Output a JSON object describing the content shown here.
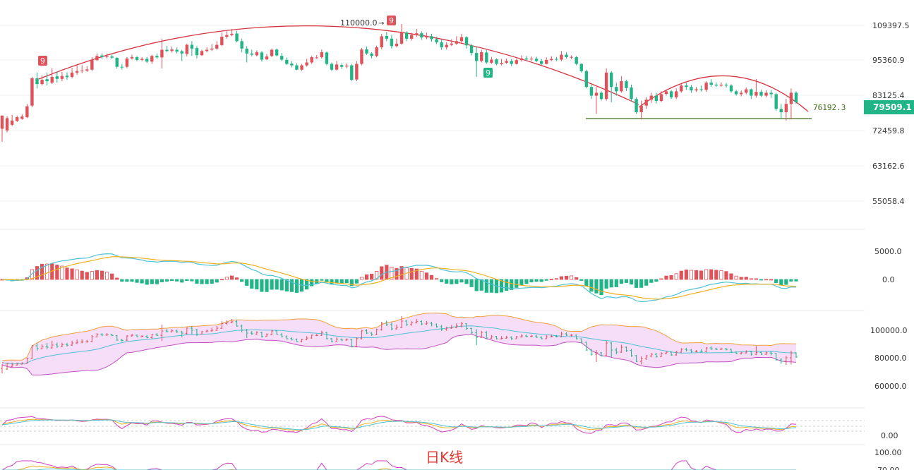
{
  "chart_data": {
    "type": "candlestick",
    "colors": {
      "up": "#e0525a",
      "down": "#20b486",
      "price_badge": "#20b486",
      "arc": "#d6333f",
      "support": "#3f6d18",
      "boll_band": "#f4d7f6",
      "macd_dif": "#4fc1d6",
      "macd_dea": "#f0b020"
    },
    "price_axis_ticks": [
      109397.5,
      95360.9,
      83125.4,
      72459.8,
      63162.6,
      55058.4
    ],
    "price_range": [
      50000,
      118000
    ],
    "annotations": {
      "high_label": "110000.0",
      "support_label": "76192.3",
      "current_price": "79509.1",
      "td_marks": [
        "9",
        "9",
        "9"
      ]
    },
    "candles": [
      [
        73000,
        77000,
        76000,
        69500
      ],
      [
        72500,
        76200,
        76800,
        72000
      ],
      [
        74200,
        75500,
        77200,
        73800
      ],
      [
        75400,
        76500,
        77000,
        75000
      ],
      [
        76000,
        76700,
        77400,
        75700
      ],
      [
        76500,
        79800,
        80500,
        76200
      ],
      [
        80000,
        89000,
        89500,
        79500
      ],
      [
        89000,
        87000,
        91000,
        85500
      ],
      [
        87000,
        88500,
        90000,
        86500
      ],
      [
        88700,
        88000,
        91000,
        86500
      ],
      [
        87500,
        89500,
        92500,
        87000
      ],
      [
        89700,
        88800,
        91300,
        87500
      ],
      [
        88800,
        89800,
        91200,
        88000
      ],
      [
        89900,
        89400,
        91100,
        88500
      ],
      [
        89500,
        91000,
        92600,
        89000
      ],
      [
        91000,
        91500,
        93500,
        90200
      ],
      [
        91600,
        91700,
        93500,
        90800
      ],
      [
        91700,
        92100,
        93200,
        91200
      ],
      [
        92000,
        95500,
        96500,
        91500
      ],
      [
        95300,
        97000,
        98000,
        95000
      ],
      [
        97200,
        96600,
        98000,
        95800
      ],
      [
        96600,
        96800,
        98000,
        96000
      ],
      [
        96800,
        96300,
        97500,
        95800
      ],
      [
        96200,
        93000,
        96500,
        92400
      ],
      [
        93000,
        92800,
        94000,
        92000
      ],
      [
        93000,
        96000,
        96500,
        92500
      ],
      [
        96000,
        96500,
        97500,
        95500
      ],
      [
        96500,
        95400,
        97000,
        95000
      ],
      [
        95400,
        95800,
        96500,
        95000
      ],
      [
        95800,
        94800,
        96600,
        94300
      ],
      [
        94800,
        97000,
        97500,
        94000
      ],
      [
        97000,
        96400,
        98000,
        95800
      ],
      [
        96400,
        99500,
        104000,
        92400
      ],
      [
        99500,
        99000,
        101000,
        98500
      ],
      [
        99000,
        99600,
        100800,
        98400
      ],
      [
        99500,
        98800,
        100500,
        98000
      ],
      [
        98900,
        98000,
        99500,
        95000
      ],
      [
        97800,
        101500,
        102000,
        96800
      ],
      [
        101500,
        100000,
        103000,
        97000
      ],
      [
        100200,
        97300,
        101000,
        96000
      ],
      [
        97300,
        99000,
        99500,
        97000
      ],
      [
        99000,
        99500,
        100500,
        98500
      ],
      [
        99600,
        100000,
        101800,
        99000
      ],
      [
        100000,
        101500,
        103000,
        99500
      ],
      [
        101400,
        104800,
        106500,
        101000
      ],
      [
        104800,
        105500,
        107000,
        104000
      ],
      [
        105500,
        106000,
        108000,
        105000
      ],
      [
        106100,
        103000,
        107200,
        102500
      ],
      [
        103000,
        100000,
        104000,
        98500
      ],
      [
        100000,
        98000,
        101000,
        94500
      ],
      [
        98000,
        97500,
        99500,
        96800
      ],
      [
        97300,
        98500,
        99300,
        96800
      ],
      [
        98400,
        95500,
        99000,
        94800
      ],
      [
        95600,
        96800,
        97800,
        95400
      ],
      [
        97000,
        99500,
        100000,
        96500
      ],
      [
        99600,
        97200,
        100000,
        96800
      ],
      [
        97000,
        95500,
        98200,
        95000
      ],
      [
        95400,
        94000,
        96400,
        93600
      ],
      [
        94100,
        93500,
        95000,
        92800
      ],
      [
        93500,
        92000,
        94200,
        91800
      ],
      [
        92000,
        93500,
        94000,
        91500
      ],
      [
        93500,
        94500,
        95800,
        93000
      ],
      [
        94500,
        96500,
        97000,
        94000
      ],
      [
        96400,
        96400,
        97400,
        95800
      ],
      [
        96500,
        98500,
        99600,
        96000
      ],
      [
        98400,
        94000,
        98800,
        93500
      ],
      [
        94000,
        92000,
        94500,
        91500
      ],
      [
        92000,
        93800,
        95000,
        91700
      ],
      [
        93600,
        93000,
        94200,
        92300
      ],
      [
        93100,
        93400,
        94200,
        92500
      ],
      [
        93500,
        88500,
        94000,
        88000
      ],
      [
        88600,
        94000,
        95000,
        88000
      ],
      [
        94000,
        99600,
        100300,
        93500
      ],
      [
        99700,
        98000,
        100800,
        97400
      ],
      [
        98000,
        97000,
        98500,
        96000
      ],
      [
        97000,
        100500,
        101200,
        96500
      ],
      [
        100500,
        105000,
        106000,
        99700
      ],
      [
        105100,
        104000,
        106800,
        103000
      ],
      [
        104000,
        101000,
        105500,
        100000
      ],
      [
        101000,
        102000,
        104000,
        100500
      ],
      [
        102000,
        106500,
        110000,
        101500
      ],
      [
        106500,
        104000,
        107000,
        103000
      ],
      [
        104000,
        105500,
        106400,
        103200
      ],
      [
        105500,
        106200,
        108000,
        104800
      ],
      [
        106200,
        104500,
        107000,
        103500
      ],
      [
        104500,
        105000,
        106500,
        103800
      ],
      [
        105000,
        103800,
        106000,
        102800
      ],
      [
        103800,
        102500,
        104800,
        101800
      ],
      [
        102500,
        100500,
        103800,
        99500
      ],
      [
        100500,
        101500,
        102600,
        99600
      ],
      [
        101500,
        102000,
        103800,
        101000
      ],
      [
        102000,
        103000,
        105000,
        101500
      ],
      [
        103000,
        104600,
        106000,
        102000
      ],
      [
        104600,
        101300,
        105000,
        100000
      ],
      [
        101300,
        98200,
        101800,
        97200
      ],
      [
        98200,
        95000,
        100800,
        89500
      ],
      [
        95000,
        98500,
        99500,
        94500
      ],
      [
        98400,
        94500,
        99400,
        94000
      ],
      [
        94400,
        95500,
        96600,
        94000
      ],
      [
        95600,
        94000,
        96000,
        93500
      ],
      [
        93900,
        94300,
        95800,
        93500
      ],
      [
        94400,
        95000,
        96000,
        94000
      ],
      [
        95000,
        94000,
        95700,
        93200
      ],
      [
        94000,
        95300,
        96000,
        93800
      ],
      [
        95300,
        96000,
        97200,
        94800
      ],
      [
        96000,
        95600,
        97000,
        95000
      ],
      [
        95600,
        95900,
        96800,
        95000
      ],
      [
        95900,
        95000,
        96700,
        94600
      ],
      [
        95000,
        94000,
        95800,
        93600
      ],
      [
        94000,
        95400,
        96400,
        93800
      ],
      [
        95300,
        95800,
        96900,
        95000
      ],
      [
        95800,
        95500,
        96600,
        95000
      ],
      [
        95500,
        97500,
        99000,
        95000
      ],
      [
        97500,
        96500,
        98500,
        96000
      ],
      [
        96500,
        96600,
        97300,
        95600
      ],
      [
        96500,
        94000,
        97000,
        93500
      ],
      [
        94000,
        91500,
        94200,
        91000
      ],
      [
        91500,
        86000,
        92000,
        85500
      ],
      [
        86000,
        83000,
        86800,
        82000
      ],
      [
        83000,
        84000,
        86000,
        77500
      ],
      [
        84000,
        82000,
        84500,
        81500
      ],
      [
        82000,
        91000,
        92500,
        81500
      ],
      [
        91000,
        86000,
        91500,
        81000
      ],
      [
        86000,
        84500,
        87500,
        83000
      ],
      [
        84500,
        88000,
        89800,
        84000
      ],
      [
        88000,
        85600,
        88500,
        84600
      ],
      [
        85800,
        82000,
        86800,
        81200
      ],
      [
        82000,
        78000,
        82500,
        77500
      ],
      [
        78000,
        80000,
        81500,
        75800
      ],
      [
        80000,
        81800,
        82500,
        79000
      ],
      [
        81800,
        83000,
        84000,
        80800
      ],
      [
        83000,
        81400,
        84000,
        80600
      ],
      [
        81400,
        83500,
        84500,
        81000
      ],
      [
        83600,
        84500,
        85000,
        83000
      ],
      [
        84500,
        82500,
        85000,
        82000
      ],
      [
        82500,
        84500,
        85500,
        82000
      ],
      [
        84500,
        86500,
        87300,
        84000
      ],
      [
        86500,
        86000,
        87500,
        85000
      ],
      [
        86000,
        84800,
        86700,
        84000
      ],
      [
        84800,
        85200,
        86000,
        84300
      ],
      [
        85200,
        85000,
        86500,
        84400
      ],
      [
        85000,
        87500,
        88000,
        84300
      ],
      [
        87500,
        86800,
        88700,
        86000
      ],
      [
        86800,
        86500,
        87600,
        86000
      ],
      [
        86500,
        86800,
        87600,
        86000
      ],
      [
        86800,
        86500,
        87400,
        85800
      ],
      [
        86500,
        84500,
        87000,
        84000
      ],
      [
        84500,
        83500,
        85000,
        83000
      ],
      [
        83500,
        84000,
        84800,
        82800
      ],
      [
        84000,
        85200,
        85800,
        83500
      ],
      [
        85200,
        83000,
        85500,
        82000
      ],
      [
        83000,
        84300,
        88800,
        82400
      ],
      [
        84300,
        83000,
        85000,
        82600
      ],
      [
        83000,
        84000,
        84900,
        82500
      ],
      [
        84000,
        83500,
        85000,
        82300
      ],
      [
        83500,
        79000,
        84000,
        78500
      ],
      [
        79000,
        78000,
        80500,
        76200
      ],
      [
        78000,
        80500,
        82000,
        75500
      ],
      [
        80500,
        84000,
        85500,
        75800
      ],
      [
        84000,
        81000,
        84500,
        80500
      ]
    ]
  }
}
